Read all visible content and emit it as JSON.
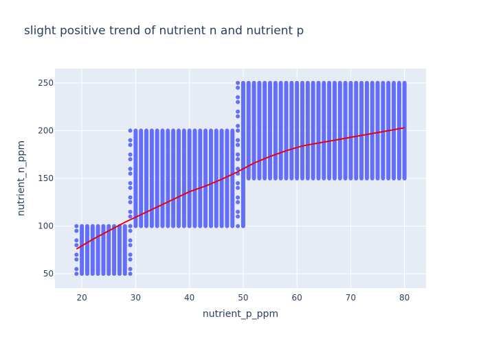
{
  "chart_data": {
    "type": "scatter",
    "title": "slight positive trend of nutrient n and nutrient p",
    "xlabel": "nutrient_p_ppm",
    "ylabel": "nutrient_n_ppm",
    "xlim": [
      15,
      84
    ],
    "ylim": [
      35,
      265
    ],
    "x_ticks": [
      20,
      30,
      40,
      50,
      60,
      70,
      80
    ],
    "y_ticks": [
      50,
      100,
      150,
      200,
      250
    ],
    "x_tick_labels": [
      "20",
      "30",
      "40",
      "50",
      "60",
      "70",
      "80"
    ],
    "y_tick_labels": [
      "50",
      "100",
      "150",
      "200",
      "250"
    ],
    "grid": true,
    "legend": false,
    "background": "#e5ecf6",
    "point_color": "#636efa",
    "trend_color": "#e8000b",
    "scatter_groups": [
      {
        "x_range": [
          19,
          29
        ],
        "y_range": [
          50,
          100
        ],
        "sparse_edge_x": [
          19,
          29
        ]
      },
      {
        "x_range": [
          29,
          50
        ],
        "y_range": [
          100,
          200
        ],
        "sparse_edge_x": [
          29,
          49
        ]
      },
      {
        "x_range": [
          49,
          80
        ],
        "y_range": [
          150,
          250
        ],
        "sparse_edge_x": [
          49
        ]
      }
    ],
    "trend_line": {
      "x": [
        19,
        22,
        25,
        28,
        31,
        34,
        37,
        40,
        43,
        46,
        49,
        52,
        55,
        58,
        61,
        64,
        67,
        70,
        73,
        76,
        80
      ],
      "y": [
        76,
        86,
        95,
        104,
        112,
        120,
        128,
        136,
        142,
        149,
        157,
        166,
        173,
        179,
        184,
        187,
        190,
        193,
        196,
        199,
        203
      ]
    }
  }
}
